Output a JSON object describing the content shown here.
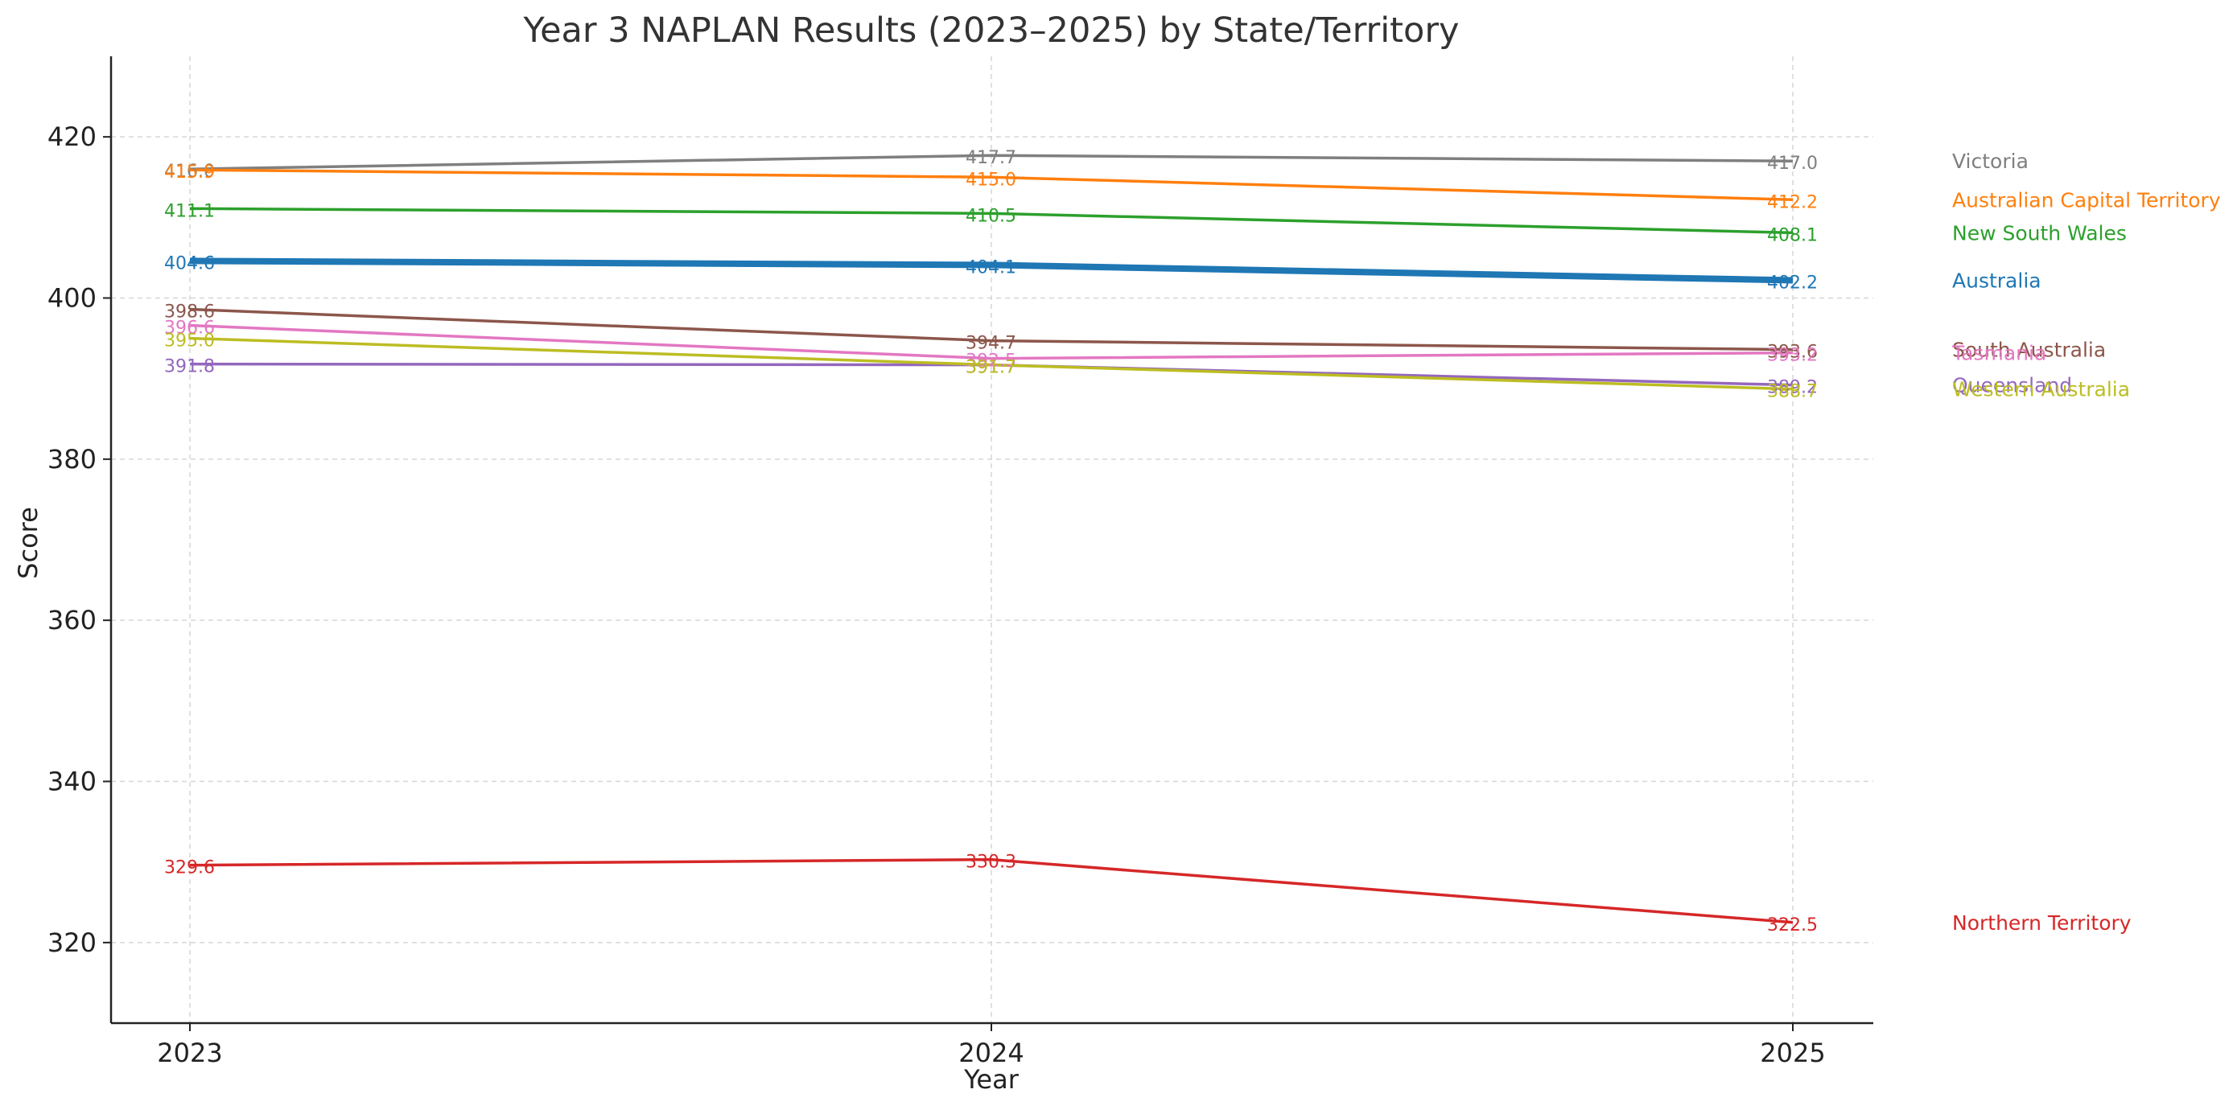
{
  "chart_data": {
    "type": "line",
    "title": "Year 3 NAPLAN Results (2023–2025) by State/Territory",
    "xlabel": "Year",
    "ylabel": "Score",
    "x": [
      "2023",
      "2024",
      "2025"
    ],
    "ylim": [
      310,
      430
    ],
    "yticks": [
      "320",
      "340",
      "360",
      "380",
      "400",
      "420"
    ],
    "grid": true,
    "legend_position": "right",
    "series": [
      {
        "name": "Victoria",
        "color": "#7f7f7f",
        "values": [
          416.0,
          417.7,
          417.0
        ],
        "labels": [
          "416.0",
          "417.7",
          "417.0"
        ]
      },
      {
        "name": "Australian Capital Territory",
        "color": "#ff7f0e",
        "values": [
          415.9,
          415.0,
          412.2
        ],
        "labels": [
          "415.9",
          "415.0",
          "412.2"
        ]
      },
      {
        "name": "New South Wales",
        "color": "#2ca02c",
        "values": [
          411.1,
          410.5,
          408.1
        ],
        "labels": [
          "411.1",
          "410.5",
          "408.1"
        ]
      },
      {
        "name": "Australia",
        "color": "#1f77b4",
        "values": [
          404.6,
          404.1,
          402.2
        ],
        "labels": [
          "404.6",
          "404.1",
          "402.2"
        ],
        "emphasis": true
      },
      {
        "name": "South Australia",
        "color": "#8c564b",
        "values": [
          398.6,
          394.7,
          393.6
        ],
        "labels": [
          "398.6",
          "394.7",
          "393.6"
        ]
      },
      {
        "name": "Tasmania",
        "color": "#e377c2",
        "values": [
          396.6,
          392.5,
          393.2
        ],
        "labels": [
          "396.6",
          "392.5",
          "393.2"
        ]
      },
      {
        "name": "Queensland",
        "color": "#9467bd",
        "values": [
          391.8,
          391.7,
          389.2
        ],
        "labels": [
          "391.8",
          "391.7",
          "389.2"
        ]
      },
      {
        "name": "Western Australia",
        "color": "#bcbd22",
        "values": [
          395.0,
          391.7,
          388.7
        ],
        "labels": [
          "395.0",
          "391.7",
          "388.7"
        ]
      },
      {
        "name": "Northern Territory",
        "color": "#d62728",
        "values": [
          329.6,
          330.3,
          322.5
        ],
        "labels": [
          "329.6",
          "330.3",
          "322.5"
        ]
      }
    ]
  }
}
